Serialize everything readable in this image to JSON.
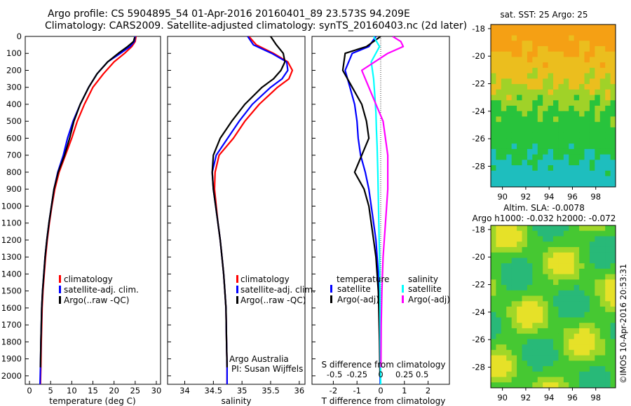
{
  "titles": {
    "line1": "Argo profile: CS 5904895_54 01-Apr-2016 20160401_89 23.573S 94.209E",
    "line2": "Climatology: CARS2009. Satellite-adjusted climatology: synTS_20160403.nc (2d later)"
  },
  "stamp": "©IMOS 10-Apr-2016 20:53:31",
  "colors": {
    "climatology": "#ff0000",
    "satellite": "#0000ff",
    "argo": "#000000",
    "sal_satellite": "#00ffff",
    "sal_argo": "#ff00ff"
  },
  "chart_data": [
    {
      "type": "line",
      "panel": "temperature",
      "xlabel": "temperature (deg C)",
      "ylim": [
        0,
        2050
      ],
      "xlim": [
        -1,
        31
      ],
      "xticks": [
        0,
        5,
        10,
        15,
        20,
        25,
        30
      ],
      "yticks": [
        0,
        100,
        200,
        300,
        400,
        500,
        600,
        700,
        800,
        900,
        1000,
        1100,
        1200,
        1300,
        1400,
        1500,
        1600,
        1700,
        1800,
        1900,
        2000
      ],
      "y_reversed": true,
      "legend": [
        "climatology",
        "satellite-adj. clim.",
        "Argo(..raw -QC)"
      ],
      "series": [
        {
          "name": "climatology",
          "x": [
            25.2,
            25.0,
            24.2,
            22.5,
            20.0,
            17.5,
            15.0,
            13.0,
            11.3,
            10.0,
            8.5,
            7.0,
            6.0,
            5.3,
            4.7,
            4.2,
            3.8,
            3.5,
            3.2,
            3.0,
            2.8,
            2.7,
            2.6
          ],
          "y": [
            0,
            30,
            60,
            100,
            150,
            220,
            300,
            400,
            500,
            600,
            700,
            800,
            900,
            1000,
            1100,
            1200,
            1300,
            1400,
            1500,
            1600,
            1800,
            1950,
            2050
          ]
        },
        {
          "name": "satellite-adj. clim.",
          "x": [
            25.0,
            24.8,
            23.8,
            21.5,
            18.5,
            16.0,
            14.0,
            12.0,
            10.3,
            9.0,
            8.0,
            6.7,
            5.8,
            5.2,
            4.6,
            4.1,
            3.7,
            3.4,
            3.1,
            2.9,
            2.7,
            2.6,
            2.5
          ],
          "y": [
            0,
            30,
            60,
            100,
            150,
            220,
            300,
            400,
            500,
            600,
            700,
            800,
            900,
            1000,
            1100,
            1200,
            1300,
            1400,
            1500,
            1600,
            1800,
            1950,
            2050
          ]
        },
        {
          "name": "Argo(..raw -QC)",
          "x": [
            24.9,
            24.6,
            23.2,
            21.0,
            18.5,
            16.0,
            14.0,
            12.0,
            10.5,
            9.5,
            8.3,
            6.8,
            5.8,
            5.2,
            4.6,
            4.1,
            3.7,
            3.4,
            3.1,
            2.9,
            2.7,
            2.6
          ],
          "y": [
            5,
            30,
            60,
            100,
            150,
            220,
            300,
            400,
            500,
            600,
            700,
            800,
            900,
            1000,
            1100,
            1200,
            1300,
            1400,
            1500,
            1600,
            1800,
            1950
          ]
        }
      ]
    },
    {
      "type": "line",
      "panel": "salinity",
      "xlabel": "salinity",
      "ylim": [
        0,
        2050
      ],
      "xlim": [
        33.7,
        36.1
      ],
      "xticks": [
        34,
        34.5,
        35,
        35.5,
        36
      ],
      "y_reversed": true,
      "legend": [
        "climatology",
        "satellite-adj. clim.",
        "Argo(..raw -QC)"
      ],
      "annotation": [
        "Argo Australia",
        "PI: Susan Wijffels"
      ],
      "series": [
        {
          "name": "climatology",
          "x": [
            35.12,
            35.25,
            35.55,
            35.8,
            35.88,
            35.82,
            35.62,
            35.3,
            35.05,
            34.85,
            34.6,
            34.53,
            34.52,
            34.55,
            34.58,
            34.62,
            34.65,
            34.68,
            34.7,
            34.72,
            34.73,
            34.74,
            34.74
          ],
          "y": [
            0,
            50,
            100,
            150,
            200,
            250,
            300,
            400,
            500,
            600,
            700,
            800,
            900,
            1000,
            1100,
            1200,
            1300,
            1400,
            1500,
            1600,
            1800,
            1950,
            2050
          ]
        },
        {
          "name": "satellite-adj. clim.",
          "x": [
            35.1,
            35.2,
            35.52,
            35.78,
            35.8,
            35.7,
            35.5,
            35.18,
            34.95,
            34.75,
            34.55,
            34.48,
            34.5,
            34.54,
            34.58,
            34.62,
            34.65,
            34.68,
            34.7,
            34.72,
            34.73,
            34.74,
            34.74
          ],
          "y": [
            0,
            50,
            100,
            150,
            200,
            250,
            300,
            400,
            500,
            600,
            700,
            800,
            900,
            1000,
            1100,
            1200,
            1300,
            1400,
            1500,
            1600,
            1800,
            1950,
            2050
          ]
        },
        {
          "name": "Argo(..raw -QC)",
          "x": [
            35.5,
            35.6,
            35.72,
            35.75,
            35.68,
            35.55,
            35.35,
            35.05,
            34.82,
            34.62,
            34.5,
            34.48,
            34.5,
            34.54,
            34.58,
            34.62,
            34.65,
            34.68,
            34.7,
            34.72,
            34.73,
            34.74
          ],
          "y": [
            0,
            50,
            100,
            150,
            200,
            250,
            300,
            400,
            500,
            600,
            700,
            800,
            900,
            1000,
            1100,
            1200,
            1300,
            1400,
            1500,
            1600,
            1800,
            1950
          ]
        }
      ]
    },
    {
      "type": "line",
      "panel": "difference",
      "xlabel": "T difference from climatology",
      "xlabel_top": "S difference from climatology",
      "ylim": [
        0,
        2050
      ],
      "xlim": [
        -2.9,
        2.9
      ],
      "xticks": [
        -2,
        -1,
        0,
        1,
        2
      ],
      "xticks_sal": [
        "-0.5",
        "-0.25",
        "0",
        "0.25",
        "0.5"
      ],
      "y_reversed": true,
      "legend_headers": [
        "temperature",
        "salinity"
      ],
      "legend": [
        "satellite",
        "Argo(-adj)",
        "satellite",
        "Argo(-adj)"
      ],
      "series": [
        {
          "name": "satellite",
          "group": "temperature",
          "x": [
            -0.2,
            -0.5,
            -1.2,
            -1.5,
            -1.3,
            -1.1,
            -1.0,
            -0.95,
            -0.85,
            -0.65,
            -0.5,
            -0.4,
            -0.3,
            -0.2,
            -0.15,
            -0.1,
            -0.08,
            -0.05,
            -0.03,
            -0.02
          ],
          "y": [
            0,
            60,
            100,
            200,
            300,
            400,
            500,
            600,
            700,
            800,
            900,
            1000,
            1100,
            1200,
            1300,
            1400,
            1500,
            1700,
            1900,
            2050
          ]
        },
        {
          "name": "Argo(-adj)",
          "group": "temperature",
          "x": [
            0,
            -0.6,
            -1.5,
            -1.6,
            -1.2,
            -0.8,
            -0.6,
            -0.5,
            -0.8,
            -1.1,
            -0.7,
            -0.5,
            -0.4,
            -0.3,
            -0.2,
            -0.15,
            -0.1,
            -0.08,
            -0.05,
            -0.03
          ],
          "y": [
            0,
            60,
            100,
            200,
            300,
            400,
            500,
            600,
            700,
            800,
            900,
            1000,
            1100,
            1200,
            1300,
            1400,
            1500,
            1600,
            1800,
            2000
          ]
        },
        {
          "name": "satellite",
          "group": "salinity",
          "x": [
            -0.3,
            -0.05,
            -0.4,
            -0.3,
            -0.25,
            -0.2,
            -0.18,
            -0.15,
            -0.12,
            -0.1,
            -0.08,
            -0.05,
            -0.03,
            -0.02,
            0
          ],
          "y": [
            0,
            60,
            150,
            250,
            350,
            450,
            550,
            650,
            800,
            950,
            1100,
            1300,
            1500,
            1800,
            2050
          ]
        },
        {
          "name": "Argo(-adj)",
          "group": "salinity",
          "x": [
            0.5,
            0.85,
            0.95,
            0.3,
            -0.8,
            -0.5,
            -0.2,
            0.1,
            0.3,
            0.3,
            0.2,
            0.1,
            0.05,
            0.02,
            0.01
          ],
          "y": [
            0,
            30,
            60,
            100,
            200,
            300,
            400,
            500,
            700,
            900,
            1100,
            1300,
            1500,
            1700,
            1950
          ]
        }
      ]
    },
    {
      "type": "heatmap",
      "panel": "sst-map",
      "title": "sat. SST: 25  Argo: 25",
      "xlim": [
        89,
        99.7
      ],
      "ylim": [
        -29.5,
        -17.7
      ],
      "xticks": [
        90,
        92,
        94,
        96,
        98
      ],
      "yticks": [
        -18,
        -20,
        -22,
        -24,
        -26,
        -28
      ]
    },
    {
      "type": "heatmap",
      "panel": "sla-map",
      "title_lines": [
        "Altim. SLA: -0.0078",
        "Argo h1000: -0.032 h2000: -0.072"
      ],
      "xlim": [
        89,
        99.7
      ],
      "ylim": [
        -29.5,
        -17.7
      ],
      "xticks": [
        90,
        92,
        94,
        96,
        98
      ],
      "yticks": [
        -18,
        -20,
        -22,
        -24,
        -26,
        -28
      ]
    }
  ]
}
